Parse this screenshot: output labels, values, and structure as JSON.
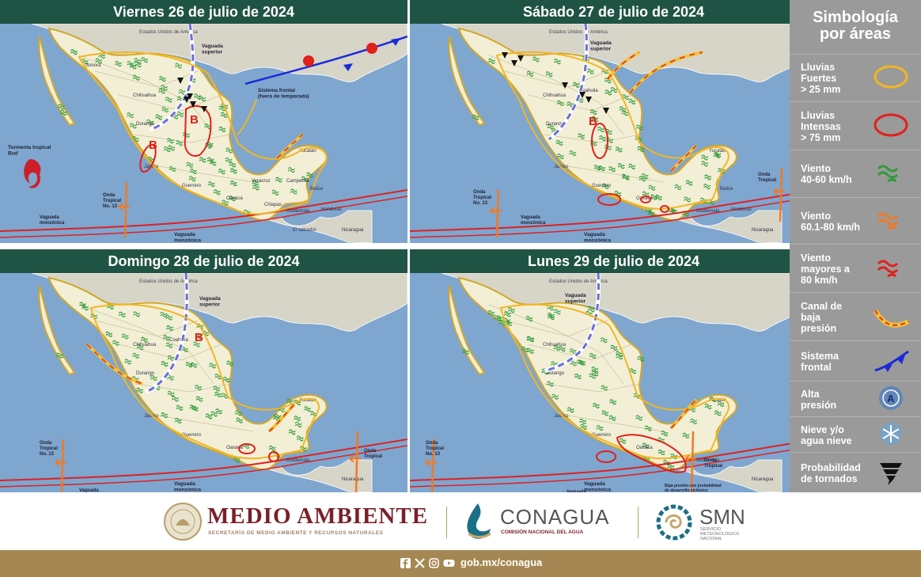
{
  "panels": [
    {
      "title": "Viernes 26 de julio de 2024",
      "labels": {
        "usa": "Estados Unidos de América",
        "vaguada_sup": "Vaguada\nsuperior",
        "frontal": "Sistema frontal\n(fuera de temporada)",
        "tormenta": "Tormenta tropical\nBud",
        "onda": "Onda\nTropical\nNo. 13",
        "vaguada_mon": "Vaguada\nmonzónica",
        "sonora": "Sonora",
        "chihuahua": "Chihuahua",
        "durango": "Durango",
        "jalisco": "Jalisco",
        "guerrero": "Guerrero",
        "oaxaca": "Oaxaca",
        "chiapas": "Chiapas",
        "veracruz": "Veracruz",
        "yucatan": "Yucatán",
        "campeche": "Campeche",
        "belice": "Belice",
        "guatemala": "Guatemala",
        "honduras": "Honduras",
        "salvador": "El salvador",
        "nicaragua": "Nicaragua",
        "b": "B"
      }
    },
    {
      "title": "Sábado 27 de julio de 2024",
      "labels": {
        "usa": "Estados Unidos de América",
        "vaguada_sup": "Vaguada\nsuperior",
        "onda_l": "Onda\nTropical\nNo. 13",
        "onda_r": "Onda\nTropical",
        "vaguada_mon": "Vaguada\nmonzónica",
        "coahuila": "Coahuila",
        "chihuahua": "Chihuahua",
        "durango": "Durango",
        "jalisco": "Jalisco",
        "guerrero": "Guerrero",
        "oaxaca": "Oaxaca",
        "yucatan": "Yucatán",
        "belice": "Belice",
        "guatemala": "Guatemala",
        "honduras": "Honduras",
        "nicaragua": "Nicaragua",
        "b": "B"
      }
    },
    {
      "title": "Domingo 28 de julio de 2024",
      "labels": {
        "usa": "Estados Unidos de América",
        "vaguada_sup": "Vaguada\nsuperior",
        "onda_l": "Onda\nTropical\nNo. 13",
        "onda_r": "Onda\nTropical",
        "vaguada_mon": "Vaguada\nmonzónica",
        "coahuila": "Coahuila",
        "chihuahua": "Chihuahua",
        "durango": "Durango",
        "jalisco": "Jalisco",
        "guerrero": "Guerrero",
        "oaxaca": "Oaxaca",
        "yucatan": "Yucatán",
        "guatemala": "Guatemala",
        "nicaragua": "Nicaragua",
        "b": "B"
      }
    },
    {
      "title": "Lunes 29 de julio de 2024",
      "labels": {
        "usa": "Estados Unidos de América",
        "vaguada_sup": "Vaguada\nsuperior",
        "onda_l": "Onda\nTropical\nNo. 13",
        "onda_r": "Onda\nTropical",
        "vaguada_mon": "Vaguada\nmonzónica",
        "baja": "Baja presión con probabilidad\nde desarrollo ciclónico",
        "chihuahua": "Chihuahua",
        "durango": "Durango",
        "jalisco": "Jalisco",
        "guerrero": "Guerrero",
        "oaxaca": "Oaxaca",
        "yucatan": "Yucatán",
        "guatemala": "Guatemala",
        "nicaragua": "Nicaragua"
      }
    }
  ],
  "legend": {
    "title": "Simbología\npor áreas",
    "items": [
      {
        "label": "Lluvias\nFuertes\n> 25 mm",
        "icon": "yellow-ellipse-icon"
      },
      {
        "label": "Lluvias\nIntensas\n> 75 mm",
        "icon": "red-ellipse-icon"
      },
      {
        "label": "Viento\n40-60 km/h",
        "icon": "green-wind-icon"
      },
      {
        "label": "Viento\n60.1-80 km/h",
        "icon": "orange-wind-icon"
      },
      {
        "label": "Viento\nmayores a\n80 km/h",
        "icon": "red-wind-icon"
      },
      {
        "label": "Canal de\nbaja\npresión",
        "icon": "low-pressure-channel-icon"
      },
      {
        "label": "Sistema\nfrontal",
        "icon": "cold-front-icon"
      },
      {
        "label": "Alta\npresión",
        "icon": "high-pressure-icon"
      },
      {
        "label": "Nieve y/o\nagua nieve",
        "icon": "snowflake-icon"
      },
      {
        "label": "Probabilidad\nde tornados",
        "icon": "tornado-icon"
      }
    ]
  },
  "footer": {
    "medio_ambiente": "MEDIO AMBIENTE",
    "semarnat": "SECRETARÍA DE MEDIO AMBIENTE Y RECURSOS NATURALES",
    "conagua": "CONAGUA",
    "conagua_sub": "COMISIÓN NACIONAL DEL AGUA",
    "smn": "SMN",
    "smn_sub": "SERVICIO\nMETEOROLÓGICO\nNACIONAL",
    "url": "gob.mx/conagua"
  },
  "colors": {
    "title_bg": "#1f5444",
    "ocean": "#7ea6cf",
    "land": "#f2efd6",
    "legend_bg": "#9a9a9a",
    "bottom_bar": "#a48752",
    "rain_strong": "#f2b623",
    "rain_intense": "#e0201b",
    "wind": "#2f9a3a"
  }
}
